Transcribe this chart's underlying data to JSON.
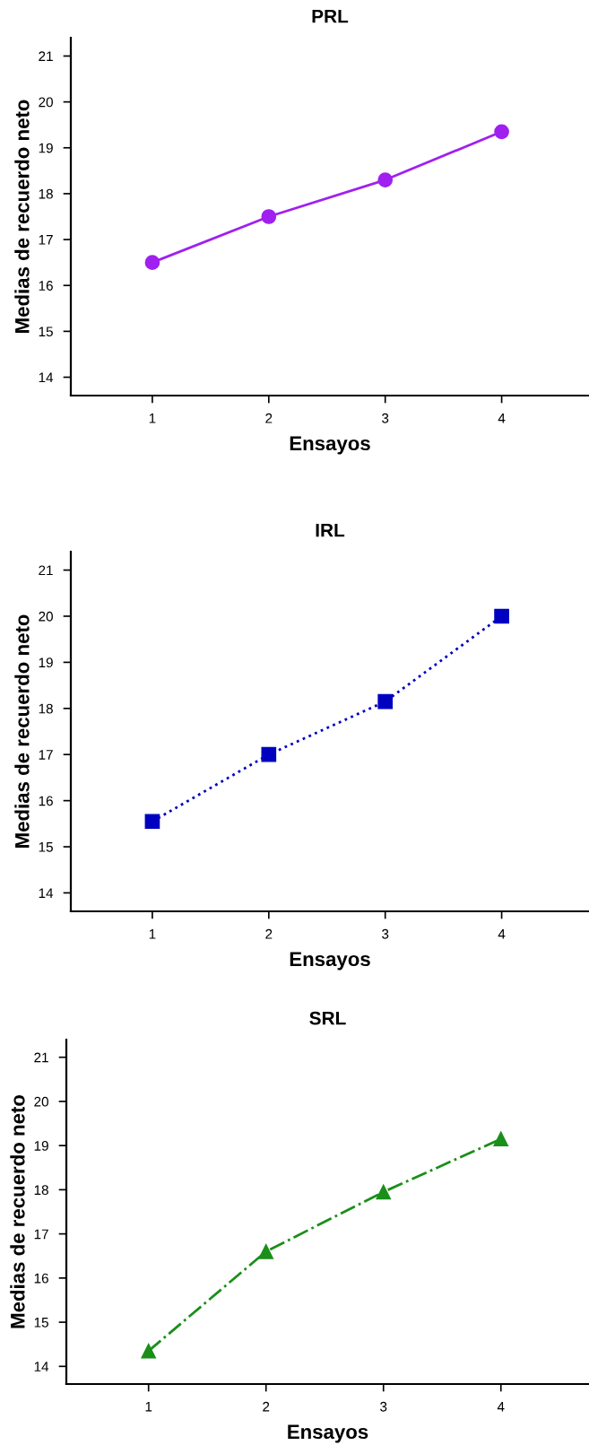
{
  "chart_data": [
    {
      "type": "line",
      "title": "PRL",
      "xlabel": "Ensayos",
      "ylabel": "Medias de recuerdo neto",
      "x": [
        1,
        2,
        3,
        4
      ],
      "xlim": [
        0.3,
        4.75
      ],
      "xticks": [
        1,
        2,
        3,
        4
      ],
      "ylim": [
        13.6,
        21.4
      ],
      "yticks": [
        14,
        15,
        16,
        17,
        18,
        19,
        20,
        21
      ],
      "grid": false,
      "legend": false,
      "marker": "circle",
      "line_style": "solid",
      "series": [
        {
          "color": "#a020f0",
          "values": [
            16.5,
            17.5,
            18.3,
            19.35
          ]
        }
      ]
    },
    {
      "type": "line",
      "title": "IRL",
      "xlabel": "Ensayos",
      "ylabel": "Medias de recuerdo neto",
      "x": [
        1,
        2,
        3,
        4
      ],
      "xlim": [
        0.3,
        4.75
      ],
      "xticks": [
        1,
        2,
        3,
        4
      ],
      "ylim": [
        13.6,
        21.4
      ],
      "yticks": [
        14,
        15,
        16,
        17,
        18,
        19,
        20,
        21
      ],
      "grid": false,
      "legend": false,
      "marker": "square",
      "line_style": "dotted",
      "series": [
        {
          "color": "#0000c0",
          "values": [
            15.55,
            17.0,
            18.15,
            20.0
          ]
        }
      ]
    },
    {
      "type": "line",
      "title": "SRL",
      "xlabel": "Ensayos",
      "ylabel": "Medias de recuerdo neto",
      "x": [
        1,
        2,
        3,
        4
      ],
      "xlim": [
        0.3,
        4.75
      ],
      "xticks": [
        1,
        2,
        3,
        4
      ],
      "ylim": [
        13.6,
        21.4
      ],
      "yticks": [
        14,
        15,
        16,
        17,
        18,
        19,
        20,
        21
      ],
      "grid": false,
      "legend": false,
      "marker": "triangle",
      "line_style": "dashdot",
      "series": [
        {
          "color": "#1a8f1a",
          "values": [
            14.35,
            16.6,
            17.95,
            19.15
          ]
        }
      ]
    }
  ]
}
